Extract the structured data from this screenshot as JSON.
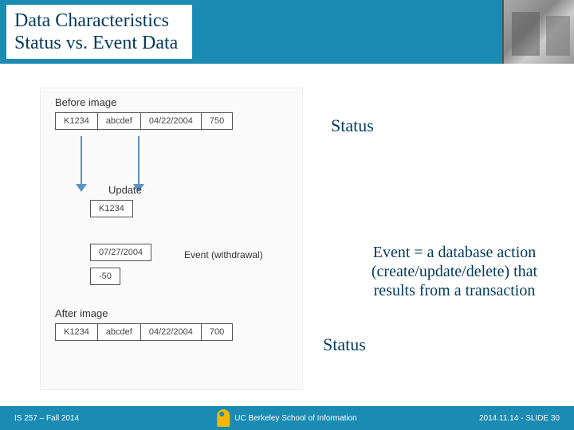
{
  "header": {
    "title_line1": "Data Characteristics",
    "title_line2": "Status vs. Event Data",
    "title_color": "#003a5c",
    "bg_color": "#1a8bb3"
  },
  "diagram": {
    "before_label": "Before image",
    "update_label": "Update",
    "event_label": "Event (withdrawal)",
    "after_label": "After image",
    "before_row": {
      "c1": "K1234",
      "c2": "abcdef",
      "c3": "04/22/2004",
      "c4": "750"
    },
    "update_key": "K1234",
    "update_date": "07/27/2004",
    "update_delta": "-50",
    "after_row": {
      "c1": "K1234",
      "c2": "abcdef",
      "c3": "04/22/2004",
      "c4": "700"
    },
    "arrow_color": "#5b93c7",
    "cell_border": "#555555",
    "font_family": "Verdana",
    "label_fontsize": 13,
    "cell_fontsize": 11
  },
  "annotations": {
    "status1": "Status",
    "status2": "Status",
    "event_def": "Event = a database action (create/update/delete) that results from a transaction",
    "text_color": "#003a5c",
    "fontsize": 22
  },
  "footer": {
    "left": "IS 257 – Fall 2014",
    "center": "UC Berkeley School of Information",
    "right": "2014.11.14 - SLIDE 30",
    "bg_color": "#1a8bb3",
    "fontsize": 10,
    "logo_color": "#f5b800"
  }
}
